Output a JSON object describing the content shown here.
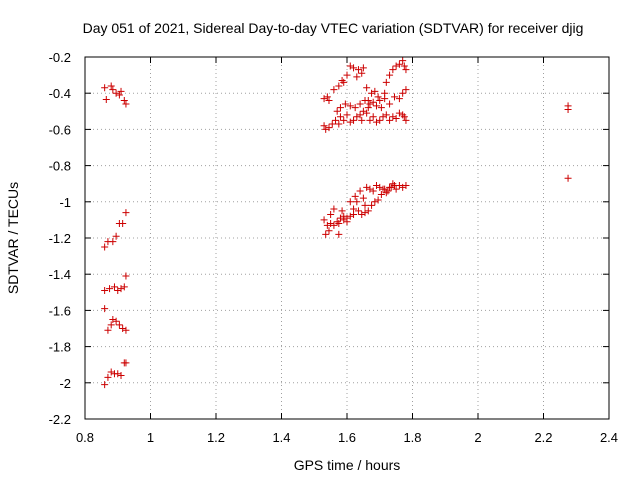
{
  "chart_data": {
    "type": "scatter",
    "title": "Day 051 of 2021, Sidereal Day-to-day VTEC variation (SDTVAR) for receiver djig",
    "xlabel": "GPS time / hours",
    "ylabel": "SDTVAR / TECUs",
    "xlim": [
      0.8,
      2.4
    ],
    "ylim": [
      -2.2,
      -0.2
    ],
    "x_ticks": [
      0.8,
      1.0,
      1.2,
      1.4,
      1.6,
      1.8,
      2.0,
      2.2,
      2.4
    ],
    "x_tick_labels": [
      "0.8",
      "1",
      "1.2",
      "1.4",
      "1.6",
      "1.8",
      "2",
      "2.2",
      "2.4"
    ],
    "y_ticks": [
      -2.2,
      -2.0,
      -1.8,
      -1.6,
      -1.4,
      -1.2,
      -1.0,
      -0.8,
      -0.6,
      -0.4,
      -0.2
    ],
    "y_tick_labels": [
      "-2.2",
      "-2",
      "-1.8",
      "-1.6",
      "-1.4",
      "-1.2",
      "-1",
      "-0.8",
      "-0.6",
      "-0.4",
      "-0.2"
    ],
    "grid": true,
    "marker": "+",
    "series": [
      {
        "name": "SDTVAR",
        "color": "#cc0000",
        "points": [
          [
            0.86,
            -0.37
          ],
          [
            0.865,
            -0.435
          ],
          [
            0.88,
            -0.36
          ],
          [
            0.885,
            -0.38
          ],
          [
            0.895,
            -0.4
          ],
          [
            0.905,
            -0.41
          ],
          [
            0.91,
            -0.39
          ],
          [
            0.92,
            -0.44
          ],
          [
            0.925,
            -0.46
          ],
          [
            0.86,
            -1.25
          ],
          [
            0.87,
            -1.22
          ],
          [
            0.885,
            -1.22
          ],
          [
            0.895,
            -1.19
          ],
          [
            0.905,
            -1.12
          ],
          [
            0.915,
            -1.12
          ],
          [
            0.925,
            -1.06
          ],
          [
            0.86,
            -1.49
          ],
          [
            0.875,
            -1.48
          ],
          [
            0.89,
            -1.47
          ],
          [
            0.9,
            -1.49
          ],
          [
            0.91,
            -1.48
          ],
          [
            0.92,
            -1.47
          ],
          [
            0.925,
            -1.41
          ],
          [
            0.86,
            -1.59
          ],
          [
            0.87,
            -1.71
          ],
          [
            0.88,
            -1.68
          ],
          [
            0.885,
            -1.65
          ],
          [
            0.895,
            -1.66
          ],
          [
            0.905,
            -1.68
          ],
          [
            0.915,
            -1.7
          ],
          [
            0.925,
            -1.71
          ],
          [
            0.86,
            -2.01
          ],
          [
            0.87,
            -1.97
          ],
          [
            0.88,
            -1.94
          ],
          [
            0.89,
            -1.95
          ],
          [
            0.9,
            -1.95
          ],
          [
            0.91,
            -1.96
          ],
          [
            0.92,
            -1.89
          ],
          [
            0.925,
            -1.89
          ],
          [
            1.53,
            -0.43
          ],
          [
            1.54,
            -0.42
          ],
          [
            1.545,
            -0.44
          ],
          [
            1.56,
            -0.38
          ],
          [
            1.575,
            -0.36
          ],
          [
            1.585,
            -0.33
          ],
          [
            1.59,
            -0.34
          ],
          [
            1.6,
            -0.3
          ],
          [
            1.61,
            -0.25
          ],
          [
            1.62,
            -0.26
          ],
          [
            1.63,
            -0.31
          ],
          [
            1.635,
            -0.27
          ],
          [
            1.645,
            -0.29
          ],
          [
            1.65,
            -0.26
          ],
          [
            1.66,
            -0.37
          ],
          [
            1.665,
            -0.44
          ],
          [
            1.675,
            -0.4
          ],
          [
            1.685,
            -0.39
          ],
          [
            1.695,
            -0.42
          ],
          [
            1.705,
            -0.48
          ],
          [
            1.715,
            -0.4
          ],
          [
            1.72,
            -0.34
          ],
          [
            1.73,
            -0.3
          ],
          [
            1.74,
            -0.27
          ],
          [
            1.75,
            -0.25
          ],
          [
            1.76,
            -0.24
          ],
          [
            1.77,
            -0.22
          ],
          [
            1.775,
            -0.25
          ],
          [
            1.78,
            -0.27
          ],
          [
            1.53,
            -0.58
          ],
          [
            1.535,
            -0.6
          ],
          [
            1.545,
            -0.59
          ],
          [
            1.555,
            -0.57
          ],
          [
            1.565,
            -0.55
          ],
          [
            1.575,
            -0.57
          ],
          [
            1.58,
            -0.53
          ],
          [
            1.59,
            -0.55
          ],
          [
            1.6,
            -0.52
          ],
          [
            1.61,
            -0.56
          ],
          [
            1.62,
            -0.55
          ],
          [
            1.63,
            -0.53
          ],
          [
            1.64,
            -0.52
          ],
          [
            1.645,
            -0.55
          ],
          [
            1.65,
            -0.5
          ],
          [
            1.66,
            -0.51
          ],
          [
            1.67,
            -0.55
          ],
          [
            1.68,
            -0.53
          ],
          [
            1.69,
            -0.56
          ],
          [
            1.7,
            -0.55
          ],
          [
            1.71,
            -0.53
          ],
          [
            1.72,
            -0.52
          ],
          [
            1.73,
            -0.55
          ],
          [
            1.74,
            -0.53
          ],
          [
            1.75,
            -0.54
          ],
          [
            1.76,
            -0.51
          ],
          [
            1.77,
            -0.52
          ],
          [
            1.775,
            -0.53
          ],
          [
            1.78,
            -0.55
          ],
          [
            1.57,
            -0.5
          ],
          [
            1.58,
            -0.48
          ],
          [
            1.595,
            -0.46
          ],
          [
            1.61,
            -0.47
          ],
          [
            1.625,
            -0.48
          ],
          [
            1.64,
            -0.46
          ],
          [
            1.655,
            -0.44
          ],
          [
            1.665,
            -0.48
          ],
          [
            1.67,
            -0.46
          ],
          [
            1.68,
            -0.45
          ],
          [
            1.69,
            -0.47
          ],
          [
            1.7,
            -0.44
          ],
          [
            1.715,
            -0.43
          ],
          [
            1.73,
            -0.46
          ],
          [
            1.745,
            -0.42
          ],
          [
            1.76,
            -0.43
          ],
          [
            1.77,
            -0.4
          ],
          [
            1.78,
            -0.38
          ],
          [
            1.53,
            -1.1
          ],
          [
            1.535,
            -1.18
          ],
          [
            1.54,
            -1.13
          ],
          [
            1.545,
            -1.16
          ],
          [
            1.55,
            -1.07
          ],
          [
            1.56,
            -1.04
          ],
          [
            1.57,
            -1.11
          ],
          [
            1.575,
            -1.18
          ],
          [
            1.58,
            -1.09
          ],
          [
            1.585,
            -1.05
          ],
          [
            1.59,
            -1.08
          ],
          [
            1.6,
            -1.11
          ],
          [
            1.61,
            -1.0
          ],
          [
            1.62,
            -1.04
          ],
          [
            1.625,
            -0.97
          ],
          [
            1.63,
            -1.0
          ],
          [
            1.64,
            -0.94
          ],
          [
            1.65,
            -0.98
          ],
          [
            1.655,
            -1.02
          ],
          [
            1.66,
            -0.92
          ],
          [
            1.67,
            -0.93
          ],
          [
            1.68,
            -0.94
          ],
          [
            1.69,
            -0.91
          ],
          [
            1.7,
            -0.92
          ],
          [
            1.71,
            -0.93
          ],
          [
            1.72,
            -0.95
          ],
          [
            1.73,
            -0.92
          ],
          [
            1.74,
            -0.9
          ],
          [
            1.75,
            -0.93
          ],
          [
            1.76,
            -0.91
          ],
          [
            1.77,
            -0.92
          ],
          [
            1.78,
            -0.91
          ],
          [
            1.55,
            -1.12
          ],
          [
            1.56,
            -1.13
          ],
          [
            1.575,
            -1.12
          ],
          [
            1.59,
            -1.1
          ],
          [
            1.6,
            -1.09
          ],
          [
            1.61,
            -1.08
          ],
          [
            1.62,
            -1.07
          ],
          [
            1.635,
            -1.05
          ],
          [
            1.645,
            -1.07
          ],
          [
            1.655,
            -1.06
          ],
          [
            1.665,
            -1.05
          ],
          [
            1.675,
            -1.02
          ],
          [
            1.685,
            -1.0
          ],
          [
            1.695,
            -0.99
          ],
          [
            1.705,
            -0.96
          ],
          [
            1.715,
            -0.93
          ],
          [
            1.725,
            -0.94
          ],
          [
            1.735,
            -0.92
          ],
          [
            1.745,
            -0.91
          ],
          [
            2.275,
            -0.47
          ],
          [
            2.275,
            -0.49
          ],
          [
            2.275,
            -0.87
          ]
        ]
      }
    ]
  }
}
